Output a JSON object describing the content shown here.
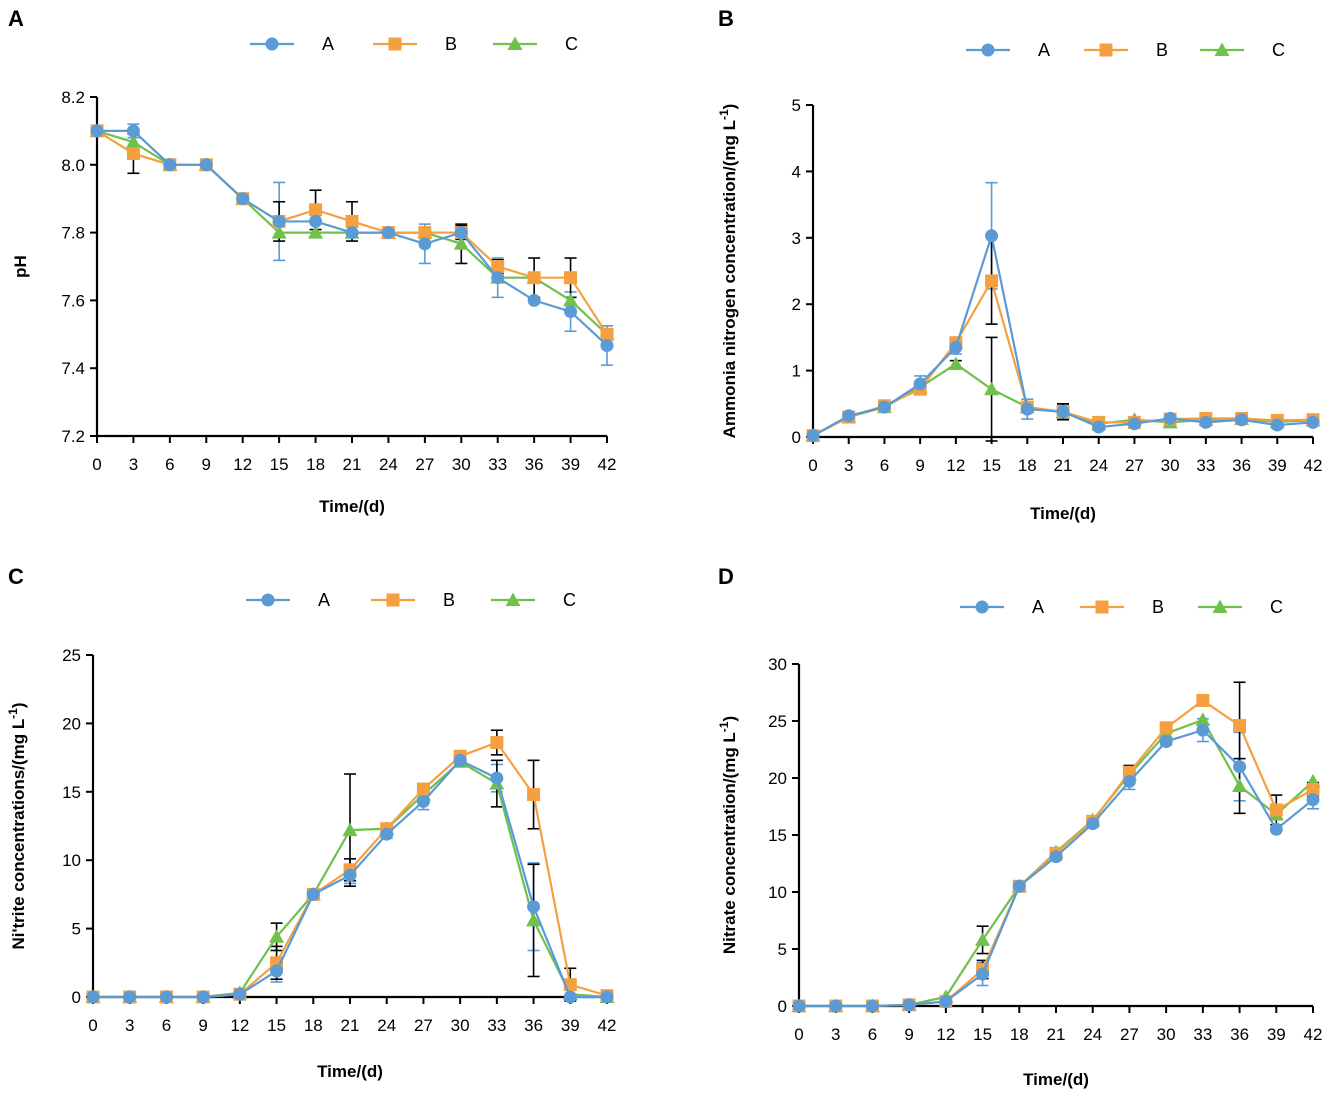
{
  "colors": {
    "A": "#5b9bd5",
    "B": "#f5a040",
    "C": "#70c04c",
    "axis": "#000000"
  },
  "chart_data": [
    {
      "panel": "A",
      "type": "line",
      "title": "",
      "xlabel": "Time/(d)",
      "ylabel": "pH",
      "ylabel_sup": "",
      "ylabel_end": "",
      "xlim": [
        0,
        42
      ],
      "ylim": [
        7.2,
        8.2
      ],
      "yticks": [
        7.2,
        7.4,
        7.6,
        7.8,
        8.0,
        8.2
      ],
      "ytick_labels": [
        "7.2",
        "7.4",
        "7.6",
        "7.8",
        "8.0",
        "8.2"
      ],
      "x": [
        0,
        3,
        6,
        9,
        12,
        15,
        18,
        21,
        24,
        27,
        30,
        33,
        36,
        39,
        42
      ],
      "x_tick_labels": [
        "0",
        "3",
        "6",
        "9",
        "12",
        "15",
        "18",
        "21",
        "24",
        "27",
        "30",
        "33",
        "36",
        "39",
        "42"
      ],
      "legend": [
        "A",
        "B",
        "C"
      ],
      "series": [
        {
          "name": "A",
          "values": [
            8.1,
            8.1,
            8.0,
            8.0,
            7.9,
            7.833,
            7.833,
            7.8,
            7.8,
            7.767,
            7.8,
            7.667,
            7.6,
            7.567,
            7.467
          ],
          "errors": [
            0,
            0.02,
            0,
            0,
            0,
            0.115,
            0,
            0,
            0,
            0.058,
            0,
            0.058,
            0,
            0.058,
            0.058
          ]
        },
        {
          "name": "B",
          "values": [
            8.1,
            8.033,
            8.0,
            8.0,
            7.9,
            7.833,
            7.867,
            7.833,
            7.8,
            7.8,
            7.8,
            7.7,
            7.667,
            7.667,
            7.5
          ],
          "errors": [
            0,
            0.058,
            0,
            0,
            0,
            0.058,
            0.058,
            0.058,
            0,
            0,
            0.02,
            0.02,
            0.058,
            0.058,
            0
          ]
        },
        {
          "name": "C",
          "values": [
            8.1,
            8.067,
            8.0,
            8.0,
            7.9,
            7.8,
            7.8,
            7.8,
            7.8,
            7.8,
            7.767,
            7.667,
            7.667,
            7.6,
            7.5
          ],
          "errors": [
            0,
            0,
            0,
            0,
            0,
            0,
            0,
            0,
            0,
            0,
            0.058,
            0,
            0,
            0,
            0
          ]
        }
      ]
    },
    {
      "panel": "B",
      "type": "line",
      "title": "",
      "xlabel": "Time/(d)",
      "ylabel": "Ammonia nitrogen concentration/(mg L",
      "ylabel_sup": "-1",
      "ylabel_end": ")",
      "xlim": [
        0,
        42
      ],
      "ylim": [
        0,
        5
      ],
      "yticks": [
        0,
        1,
        2,
        3,
        4,
        5
      ],
      "ytick_labels": [
        "0",
        "1",
        "2",
        "3",
        "4",
        "5"
      ],
      "x": [
        0,
        3,
        6,
        9,
        12,
        15,
        18,
        21,
        24,
        27,
        30,
        33,
        36,
        39,
        42
      ],
      "x_tick_labels": [
        "0",
        "3",
        "6",
        "9",
        "12",
        "15",
        "18",
        "21",
        "24",
        "27",
        "30",
        "33",
        "36",
        "39",
        "42"
      ],
      "legend": [
        "A",
        "B",
        "C"
      ],
      "series": [
        {
          "name": "A",
          "values": [
            0.02,
            0.32,
            0.45,
            0.8,
            1.35,
            3.03,
            0.42,
            0.38,
            0.15,
            0.2,
            0.28,
            0.22,
            0.26,
            0.18,
            0.22
          ],
          "errors": [
            0,
            0.05,
            0.05,
            0.12,
            0.1,
            0.8,
            0.15,
            0.1,
            0.05,
            0.05,
            0.05,
            0.05,
            0.05,
            0.05,
            0.05
          ]
        },
        {
          "name": "B",
          "values": [
            0.02,
            0.3,
            0.47,
            0.72,
            1.42,
            2.35,
            0.45,
            0.38,
            0.22,
            0.22,
            0.27,
            0.28,
            0.28,
            0.25,
            0.26
          ],
          "errors": [
            0,
            0.03,
            0.05,
            0.05,
            0.05,
            0.65,
            0.05,
            0.12,
            0.04,
            0.04,
            0.04,
            0.03,
            0.03,
            0.03,
            0.03
          ]
        },
        {
          "name": "C",
          "values": [
            0.02,
            0.3,
            0.45,
            0.75,
            1.1,
            0.72,
            0.45,
            0.37,
            0.2,
            0.26,
            0.22,
            0.26,
            0.27,
            0.23,
            0.25
          ],
          "errors": [
            0,
            0,
            0,
            0,
            0.05,
            0.78,
            0,
            0,
            0,
            0,
            0,
            0,
            0,
            0,
            0
          ]
        }
      ]
    },
    {
      "panel": "C",
      "type": "line",
      "title": "",
      "xlabel": "Time/(d)",
      "ylabel": "Ni'trite concentrations/(mg L",
      "ylabel_sup": "-1",
      "ylabel_end": ")",
      "xlim": [
        0,
        42
      ],
      "ylim": [
        0,
        25
      ],
      "yticks": [
        0,
        5,
        10,
        15,
        20,
        25
      ],
      "ytick_labels": [
        "0",
        "5",
        "10",
        "15",
        "20",
        "25"
      ],
      "x": [
        0,
        3,
        6,
        9,
        12,
        15,
        18,
        21,
        24,
        27,
        30,
        33,
        36,
        39,
        42
      ],
      "x_tick_labels": [
        "0",
        "3",
        "6",
        "9",
        "12",
        "15",
        "18",
        "21",
        "24",
        "27",
        "30",
        "33",
        "36",
        "39",
        "42"
      ],
      "legend": [
        "A",
        "B",
        "C"
      ],
      "series": [
        {
          "name": "A",
          "values": [
            0,
            0,
            0,
            0,
            0.2,
            1.9,
            7.5,
            8.9,
            11.9,
            14.3,
            17.3,
            16.0,
            6.6,
            0,
            0
          ],
          "errors": [
            0,
            0,
            0,
            0,
            0,
            0.8,
            0,
            0.6,
            0.3,
            0.6,
            0.3,
            1.0,
            3.2,
            0,
            0
          ]
        },
        {
          "name": "B",
          "values": [
            0,
            0,
            0,
            0,
            0.2,
            2.5,
            7.5,
            9.3,
            12.3,
            15.2,
            17.6,
            18.6,
            14.8,
            0.9,
            0.1
          ],
          "errors": [
            0,
            0,
            0,
            0,
            0,
            1.2,
            0,
            0.8,
            0.3,
            0.3,
            0.3,
            0.9,
            2.5,
            1.2,
            0
          ]
        },
        {
          "name": "C",
          "values": [
            0,
            0,
            0,
            0,
            0.3,
            4.4,
            7.5,
            12.2,
            12.3,
            14.8,
            17.2,
            15.6,
            5.6,
            0.2,
            0
          ],
          "errors": [
            0,
            0,
            0,
            0,
            0,
            1.0,
            0,
            4.1,
            0,
            0,
            0,
            1.7,
            4.1,
            0,
            0
          ]
        }
      ]
    },
    {
      "panel": "D",
      "type": "line",
      "title": "",
      "xlabel": "Time/(d)",
      "ylabel": "Nitrate concentration/(mg L",
      "ylabel_sup": "-1",
      "ylabel_end": ")",
      "xlim": [
        0,
        42
      ],
      "ylim": [
        0,
        30
      ],
      "yticks": [
        0,
        5,
        10,
        15,
        20,
        25,
        30
      ],
      "ytick_labels": [
        "0",
        "5",
        "10",
        "15",
        "20",
        "25",
        "30"
      ],
      "x": [
        0,
        3,
        6,
        9,
        12,
        15,
        18,
        21,
        24,
        27,
        30,
        33,
        36,
        39,
        42
      ],
      "x_tick_labels": [
        "0",
        "3",
        "6",
        "9",
        "12",
        "15",
        "18",
        "21",
        "24",
        "27",
        "30",
        "33",
        "36",
        "39",
        "42"
      ],
      "legend": [
        "A",
        "B",
        "C"
      ],
      "series": [
        {
          "name": "A",
          "values": [
            0,
            0,
            0,
            0.1,
            0.4,
            2.8,
            10.5,
            13.1,
            16.0,
            19.7,
            23.2,
            24.2,
            21.0,
            15.5,
            18.1
          ],
          "errors": [
            0,
            0,
            0,
            0,
            0,
            1.0,
            0,
            0.3,
            0.3,
            0.7,
            0.3,
            1.0,
            3.0,
            0,
            0.8
          ]
        },
        {
          "name": "B",
          "values": [
            0,
            0,
            0,
            0.1,
            0.4,
            3.2,
            10.5,
            13.4,
            16.2,
            20.5,
            24.4,
            26.8,
            24.6,
            17.2,
            19.0
          ],
          "errors": [
            0,
            0,
            0,
            0,
            0,
            0.8,
            0,
            0,
            0,
            0.6,
            0.3,
            0,
            3.8,
            1.3,
            0.6
          ]
        },
        {
          "name": "C",
          "values": [
            0,
            0,
            0,
            0.1,
            0.8,
            5.8,
            10.5,
            13.5,
            16.3,
            20.3,
            23.9,
            25.1,
            19.3,
            16.8,
            19.7
          ],
          "errors": [
            0,
            0,
            0,
            0,
            0,
            1.2,
            0,
            0,
            0,
            0,
            0,
            0,
            2.4,
            0,
            0
          ]
        }
      ]
    }
  ]
}
